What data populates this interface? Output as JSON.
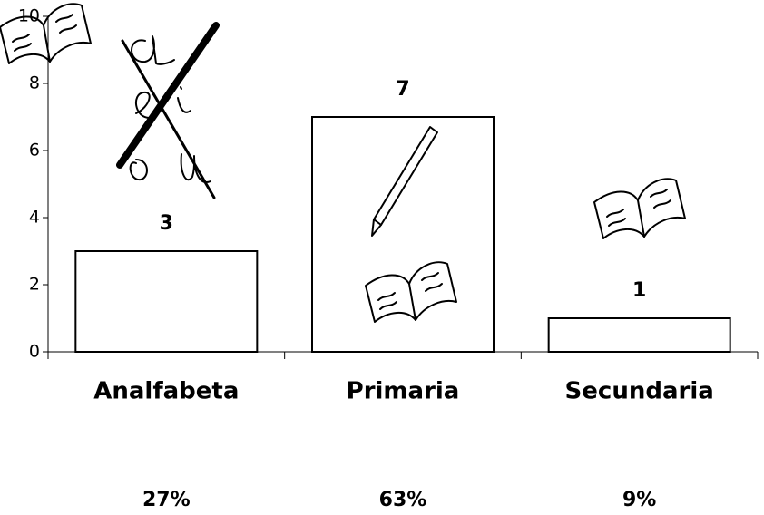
{
  "chart_data": {
    "type": "bar",
    "categories": [
      "Analfabeta",
      "Primaria",
      "Secundaria"
    ],
    "values": [
      3,
      7,
      1
    ],
    "percent_labels": [
      "27%",
      "63%",
      "9%"
    ],
    "color": "#ffffff",
    "ylim": [
      0,
      10
    ],
    "yticks": [
      0,
      2,
      4,
      6,
      8,
      10
    ],
    "grid": false
  }
}
